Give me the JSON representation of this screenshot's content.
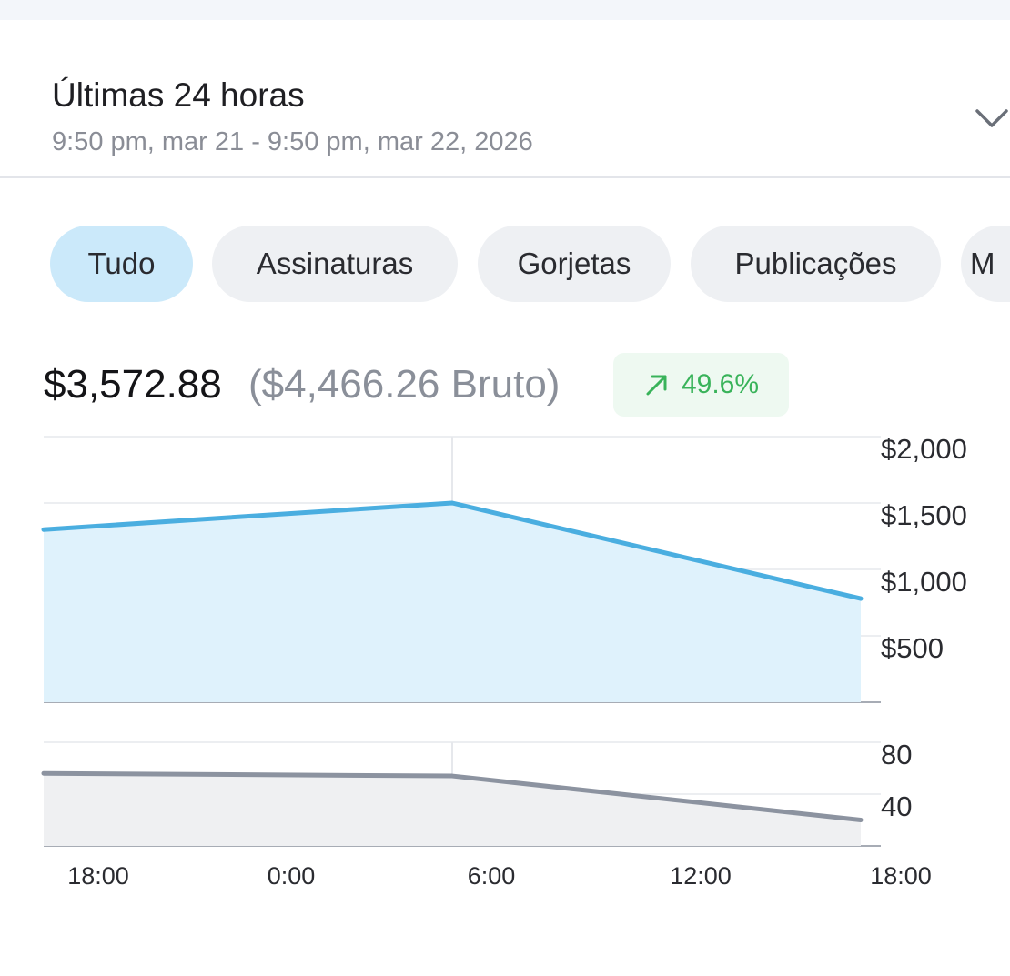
{
  "period": {
    "title": "Últimas 24 horas",
    "range": "9:50 pm, mar 21 - 9:50 pm, mar 22, 2026",
    "expand_icon": "chevron-down-icon"
  },
  "filters": [
    {
      "label": "Tudo",
      "active": true
    },
    {
      "label": "Assinaturas",
      "active": false
    },
    {
      "label": "Gorjetas",
      "active": false
    },
    {
      "label": "Publicações",
      "active": false
    },
    {
      "label": "M",
      "active": false
    }
  ],
  "summary": {
    "net": "$3,572.88",
    "gross": "($4,466.26 Bruto)",
    "change": "49.6%",
    "change_icon": "arrow-up-right-icon",
    "change_color": "#39b35a"
  },
  "chart_data": [
    {
      "type": "area",
      "x": [
        "18:00",
        "6:00",
        "18:00"
      ],
      "values": [
        1300,
        1500,
        780
      ],
      "ylim": [
        0,
        2000
      ],
      "yticks": [
        "$2,000",
        "$1,500",
        "$1,000",
        "$500"
      ],
      "ytick_values": [
        2000,
        1500,
        1000,
        500
      ],
      "color": "#4aaee0",
      "fill": "#dff2fc",
      "grid": true
    },
    {
      "type": "area",
      "x": [
        "18:00",
        "6:00",
        "18:00"
      ],
      "values": [
        56,
        54,
        20
      ],
      "ylim": [
        0,
        80
      ],
      "yticks": [
        "80",
        "40"
      ],
      "ytick_values": [
        80,
        40
      ],
      "color": "#8c93a0",
      "fill": "#eff0f2",
      "grid": true
    }
  ],
  "x_axis": {
    "labels": [
      "18:00",
      "0:00",
      "6:00",
      "12:00",
      "18:00"
    ]
  }
}
